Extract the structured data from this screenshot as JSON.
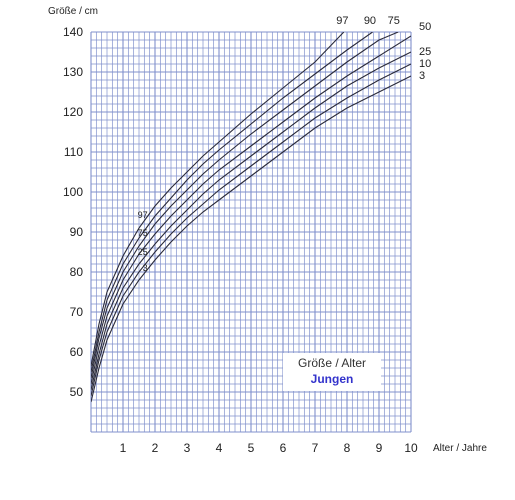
{
  "chart_data": {
    "type": "line",
    "ylabel": "Größe / cm",
    "xlabel": "Alter / Jahre",
    "xlim": [
      0,
      10
    ],
    "ylim": [
      40,
      140
    ],
    "xticks": [
      1,
      2,
      3,
      4,
      5,
      6,
      7,
      8,
      9,
      10
    ],
    "yticks": [
      50,
      60,
      70,
      80,
      90,
      100,
      110,
      120,
      130,
      140
    ],
    "grid": true,
    "grid_color": "#8090cc",
    "line_color": "#2a2a3a",
    "inset": {
      "title": "Größe / Alter",
      "subtitle": "Jungen",
      "subtitle_color": "#3333cc"
    },
    "series": [
      {
        "name": "3",
        "points": [
          [
            0,
            47.5
          ],
          [
            0.25,
            56
          ],
          [
            0.5,
            63
          ],
          [
            1,
            72
          ],
          [
            1.5,
            78
          ],
          [
            2,
            83
          ],
          [
            2.5,
            87.5
          ],
          [
            3,
            91.5
          ],
          [
            3.5,
            95
          ],
          [
            4,
            98
          ],
          [
            5,
            104
          ],
          [
            6,
            110
          ],
          [
            7,
            116
          ],
          [
            8,
            121
          ],
          [
            9,
            125
          ],
          [
            10,
            129
          ]
        ]
      },
      {
        "name": "10",
        "points": [
          [
            0,
            49
          ],
          [
            0.25,
            58
          ],
          [
            0.5,
            65
          ],
          [
            1,
            74
          ],
          [
            1.5,
            80
          ],
          [
            2,
            85
          ],
          [
            2.5,
            89.5
          ],
          [
            3,
            93.5
          ],
          [
            3.5,
            97
          ],
          [
            4,
            100.5
          ],
          [
            5,
            106.5
          ],
          [
            6,
            112.5
          ],
          [
            7,
            118.5
          ],
          [
            8,
            123.5
          ],
          [
            9,
            128
          ],
          [
            10,
            132
          ]
        ]
      },
      {
        "name": "25",
        "points": [
          [
            0,
            50.5
          ],
          [
            0.25,
            59.5
          ],
          [
            0.5,
            67
          ],
          [
            1,
            76
          ],
          [
            1.5,
            82
          ],
          [
            2,
            87
          ],
          [
            2.5,
            91.5
          ],
          [
            3,
            95.5
          ],
          [
            3.5,
            99.5
          ],
          [
            4,
            103
          ],
          [
            5,
            109
          ],
          [
            6,
            115
          ],
          [
            7,
            121
          ],
          [
            8,
            126.5
          ],
          [
            9,
            131
          ],
          [
            10,
            135
          ]
        ]
      },
      {
        "name": "50",
        "points": [
          [
            0,
            52
          ],
          [
            0.25,
            61.5
          ],
          [
            0.5,
            69
          ],
          [
            1,
            78
          ],
          [
            1.5,
            84.5
          ],
          [
            2,
            89.5
          ],
          [
            2.5,
            94
          ],
          [
            3,
            98
          ],
          [
            3.5,
            102
          ],
          [
            4,
            105.5
          ],
          [
            5,
            111.5
          ],
          [
            6,
            117.5
          ],
          [
            7,
            123.5
          ],
          [
            8,
            129
          ],
          [
            9,
            134
          ],
          [
            10,
            139
          ]
        ]
      },
      {
        "name": "75",
        "points": [
          [
            0,
            53.5
          ],
          [
            0.25,
            63.5
          ],
          [
            0.5,
            71
          ],
          [
            1,
            80
          ],
          [
            1.5,
            86.5
          ],
          [
            2,
            92
          ],
          [
            2.5,
            96.5
          ],
          [
            3,
            100.5
          ],
          [
            3.5,
            104.5
          ],
          [
            4,
            108
          ],
          [
            5,
            114.5
          ],
          [
            6,
            120.5
          ],
          [
            7,
            126.5
          ],
          [
            8,
            132.5
          ],
          [
            9,
            138
          ],
          [
            9.6,
            141
          ]
        ]
      },
      {
        "name": "90",
        "points": [
          [
            0,
            55
          ],
          [
            0.25,
            65
          ],
          [
            0.5,
            73
          ],
          [
            1,
            82
          ],
          [
            1.5,
            88.5
          ],
          [
            2,
            94
          ],
          [
            2.5,
            98.5
          ],
          [
            3,
            103
          ],
          [
            3.5,
            107
          ],
          [
            4,
            110.5
          ],
          [
            5,
            117
          ],
          [
            6,
            123.5
          ],
          [
            7,
            129.5
          ],
          [
            8,
            135.5
          ],
          [
            8.8,
            141
          ]
        ]
      },
      {
        "name": "97",
        "points": [
          [
            0,
            56.5
          ],
          [
            0.25,
            67
          ],
          [
            0.5,
            75
          ],
          [
            1,
            84
          ],
          [
            1.5,
            91
          ],
          [
            2,
            96.5
          ],
          [
            2.5,
            101
          ],
          [
            3,
            105
          ],
          [
            3.5,
            109
          ],
          [
            4,
            112.5
          ],
          [
            5,
            119.5
          ],
          [
            6,
            126
          ],
          [
            7,
            132.5
          ],
          [
            7.9,
            141
          ]
        ]
      }
    ],
    "series_labels_left": [
      "97",
      "75",
      "25",
      "3"
    ],
    "series_labels_top": [
      "97",
      "90",
      "75"
    ],
    "series_labels_right": [
      "50",
      "25",
      "10",
      "3"
    ]
  }
}
